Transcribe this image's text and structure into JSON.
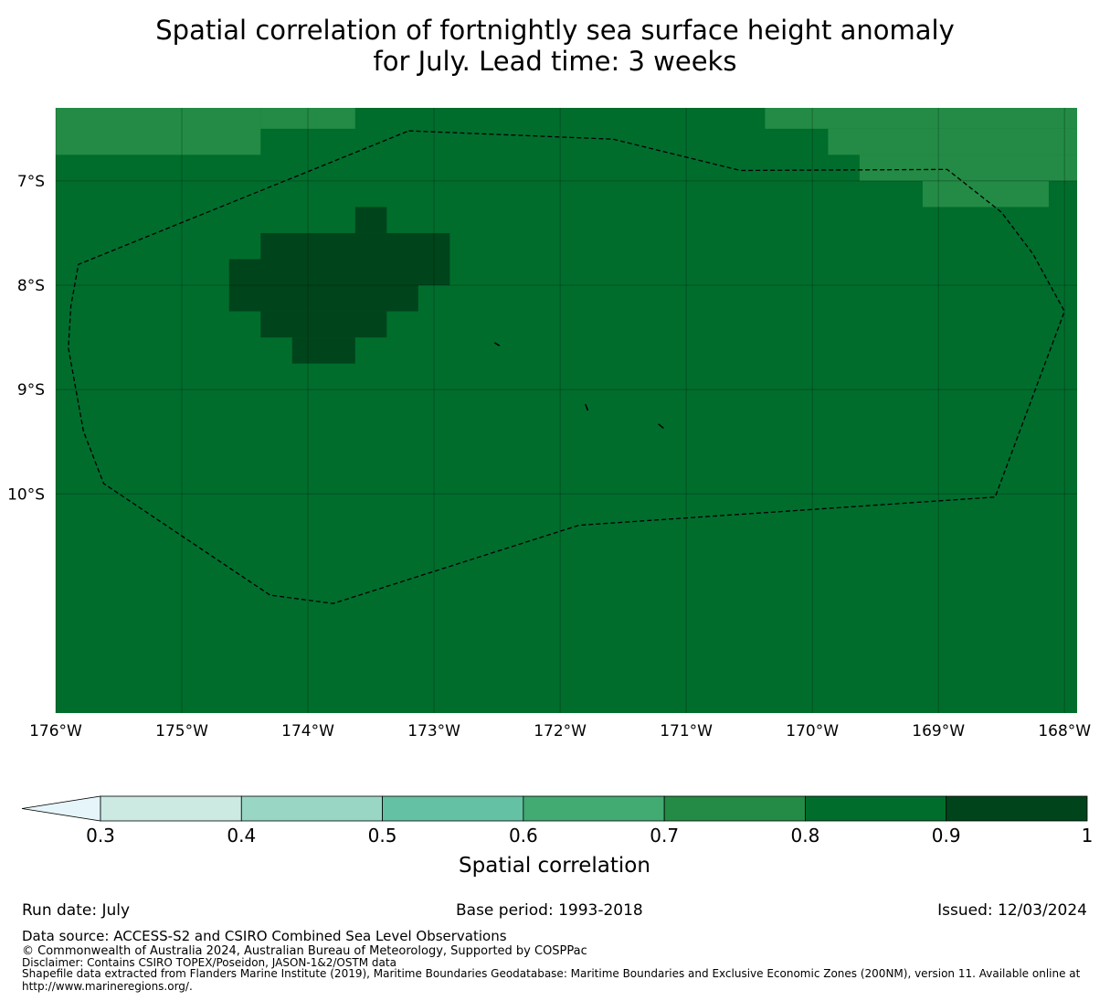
{
  "title_line1": "Spatial correlation of fortnightly sea surface height anomaly",
  "title_line2": "for July. Lead time: 3 weeks",
  "chart_data": {
    "type": "heatmap",
    "x_ticks": [
      "176°W",
      "175°W",
      "174°W",
      "173°W",
      "172°W",
      "171°W",
      "170°W",
      "169°W",
      "168°W"
    ],
    "y_ticks": [
      "7°S",
      "8°S",
      "9°S",
      "10°S"
    ],
    "xlim": [
      -176,
      -167.9
    ],
    "ylim": [
      -12.1,
      -6.3
    ],
    "grid": true,
    "background_value": 0.85,
    "cells": [
      {
        "lon": [
          -176,
          -174.375
        ],
        "lat": [
          -6.75,
          -6.3
        ],
        "value": 0.75
      },
      {
        "lon": [
          -174.375,
          -173.625
        ],
        "lat": [
          -6.5,
          -6.3
        ],
        "value": 0.75
      },
      {
        "lon": [
          -170.375,
          -167.9
        ],
        "lat": [
          -6.5,
          -6.3
        ],
        "value": 0.75
      },
      {
        "lon": [
          -169.875,
          -167.9
        ],
        "lat": [
          -6.75,
          -6.5
        ],
        "value": 0.75
      },
      {
        "lon": [
          -169.625,
          -167.9
        ],
        "lat": [
          -7,
          -6.75
        ],
        "value": 0.75
      },
      {
        "lon": [
          -169.125,
          -168.125
        ],
        "lat": [
          -7.25,
          -7
        ],
        "value": 0.75
      },
      {
        "lon": [
          -173.625,
          -173.375
        ],
        "lat": [
          -7.5,
          -7.25
        ],
        "value": 0.95
      },
      {
        "lon": [
          -174.375,
          -172.875
        ],
        "lat": [
          -7.75,
          -7.5
        ],
        "value": 0.95
      },
      {
        "lon": [
          -174.625,
          -172.875
        ],
        "lat": [
          -8,
          -7.75
        ],
        "value": 0.95
      },
      {
        "lon": [
          -174.625,
          -173.125
        ],
        "lat": [
          -8.25,
          -8
        ],
        "value": 0.95
      },
      {
        "lon": [
          -174.375,
          -173.375
        ],
        "lat": [
          -8.5,
          -8.25
        ],
        "value": 0.95
      },
      {
        "lon": [
          -174.125,
          -173.625
        ],
        "lat": [
          -8.75,
          -8.5
        ],
        "value": 0.95
      }
    ],
    "eez_boundary": [
      [
        -173.2,
        -6.52
      ],
      [
        -171.58,
        -6.6
      ],
      [
        -170.57,
        -6.9
      ],
      [
        -168.93,
        -6.89
      ],
      [
        -168.5,
        -7.3
      ],
      [
        -168.25,
        -7.7
      ],
      [
        -168.0,
        -8.25
      ],
      [
        -168.55,
        -10.03
      ],
      [
        -171.85,
        -10.3
      ],
      [
        -173.8,
        -11.05
      ],
      [
        -174.3,
        -10.97
      ],
      [
        -175.62,
        -9.9
      ],
      [
        -175.78,
        -9.4
      ],
      [
        -175.9,
        -8.6
      ],
      [
        -175.88,
        -8.2
      ],
      [
        -175.82,
        -7.8
      ],
      [
        -173.2,
        -6.52
      ]
    ],
    "islands": [
      [
        [
          -172.52,
          -8.55
        ],
        [
          -172.48,
          -8.58
        ]
      ],
      [
        [
          -171.8,
          -9.14
        ],
        [
          -171.78,
          -9.2
        ]
      ],
      [
        [
          -171.22,
          -9.33
        ],
        [
          -171.18,
          -9.37
        ]
      ]
    ],
    "colorbar": {
      "label": "Spatial correlation",
      "ticks": [
        "0.3",
        "0.4",
        "0.5",
        "0.6",
        "0.7",
        "0.8",
        "0.9",
        "1"
      ],
      "bounds": [
        0.3,
        0.4,
        0.5,
        0.6,
        0.7,
        0.8,
        0.9,
        1.0
      ],
      "colors": [
        "#cceae2",
        "#99d7c4",
        "#64c1a3",
        "#41ab72",
        "#238b45",
        "#006d2c",
        "#00441b"
      ],
      "under_color": "#e5f5f9",
      "extend": "min"
    }
  },
  "footer": {
    "run_date": "Run date: July",
    "base_period": "Base period: 1993-2018",
    "issued": "Issued: 12/03/2024",
    "data_source": "Data source: ACCESS-S2 and CSIRO Combined Sea Level Observations",
    "copyright": "© Commonwealth of Australia 2024, Australian Bureau of Meteorology, Supported by COSPPac",
    "disclaimer": "Disclaimer: Contains CSIRO TOPEX/Poseidon, JASON-1&2/OSTM data",
    "shapefile": "Shapefile data extracted from Flanders Marine Institute (2019), Maritime Boundaries Geodatabase: Maritime Boundaries and Exclusive Economic Zones (200NM), version 11. Available online at",
    "url": "http://www.marineregions.org/."
  }
}
